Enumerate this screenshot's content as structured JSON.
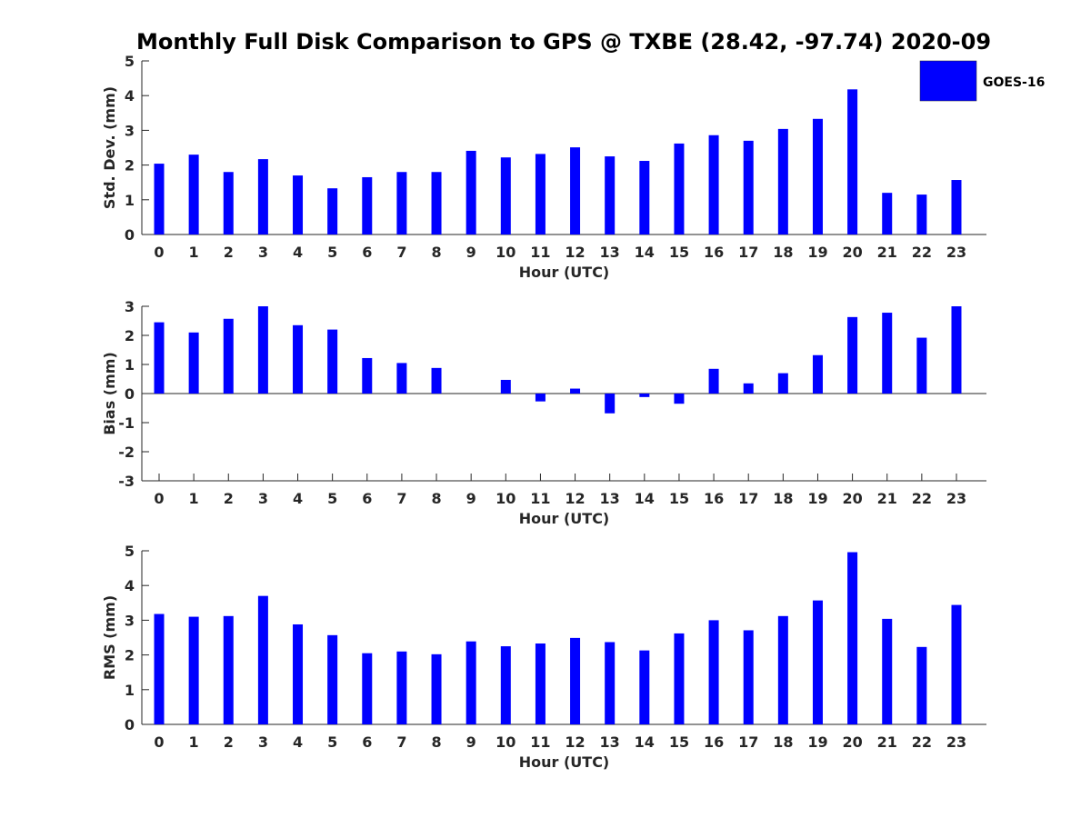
{
  "title": "Monthly Full Disk Comparison to GPS @ TXBE (28.42, -97.74) 2020-09",
  "legend": {
    "label": "GOES-16",
    "color": "#0000ff",
    "position": "top-right"
  },
  "colors": {
    "bar": "#0000ff",
    "axis": "#262626",
    "text": "#262626"
  },
  "chart_data": [
    {
      "type": "bar",
      "title": "Monthly Full Disk Comparison to GPS @ TXBE (28.42, -97.74) 2020-09",
      "xlabel": "Hour (UTC)",
      "ylabel": "Std. Dev. (mm)",
      "categories": [
        "0",
        "1",
        "2",
        "3",
        "4",
        "5",
        "6",
        "7",
        "8",
        "9",
        "10",
        "11",
        "12",
        "13",
        "14",
        "15",
        "16",
        "17",
        "18",
        "19",
        "20",
        "21",
        "22",
        "23"
      ],
      "series": [
        {
          "name": "GOES-16",
          "values": [
            2.04,
            2.3,
            1.8,
            2.17,
            1.7,
            1.33,
            1.65,
            1.8,
            1.8,
            2.41,
            2.22,
            2.32,
            2.51,
            2.25,
            2.12,
            2.62,
            2.86,
            2.7,
            3.04,
            3.33,
            4.18,
            1.2,
            1.15,
            1.57
          ]
        }
      ],
      "ylim": [
        0,
        5
      ],
      "yticks": [
        "0",
        "1",
        "2",
        "3",
        "4",
        "5"
      ],
      "grid": false
    },
    {
      "type": "bar",
      "xlabel": "Hour (UTC)",
      "ylabel": "Bias (mm)",
      "categories": [
        "0",
        "1",
        "2",
        "3",
        "4",
        "5",
        "6",
        "7",
        "8",
        "9",
        "10",
        "11",
        "12",
        "13",
        "14",
        "15",
        "16",
        "17",
        "18",
        "19",
        "20",
        "21",
        "22",
        "23"
      ],
      "series": [
        {
          "name": "GOES-16",
          "values": [
            2.45,
            2.1,
            2.57,
            3.0,
            2.35,
            2.2,
            1.22,
            1.05,
            0.88,
            0.0,
            0.47,
            -0.27,
            0.17,
            -0.68,
            -0.12,
            -0.35,
            0.85,
            0.35,
            0.7,
            1.32,
            2.63,
            2.78,
            1.92,
            3.0
          ]
        }
      ],
      "ylim": [
        -3,
        3
      ],
      "yticks": [
        "-3",
        "-2",
        "-1",
        "0",
        "1",
        "2",
        "3"
      ],
      "grid": false
    },
    {
      "type": "bar",
      "xlabel": "Hour (UTC)",
      "ylabel": "RMS (mm)",
      "categories": [
        "0",
        "1",
        "2",
        "3",
        "4",
        "5",
        "6",
        "7",
        "8",
        "9",
        "10",
        "11",
        "12",
        "13",
        "14",
        "15",
        "16",
        "17",
        "18",
        "19",
        "20",
        "21",
        "22",
        "23"
      ],
      "series": [
        {
          "name": "GOES-16",
          "values": [
            3.18,
            3.1,
            3.12,
            3.7,
            2.88,
            2.57,
            2.05,
            2.1,
            2.02,
            2.39,
            2.25,
            2.33,
            2.49,
            2.37,
            2.13,
            2.62,
            3.0,
            2.71,
            3.12,
            3.57,
            4.96,
            3.04,
            2.23,
            3.44
          ]
        }
      ],
      "ylim": [
        0,
        5
      ],
      "yticks": [
        "0",
        "1",
        "2",
        "3",
        "4",
        "5"
      ],
      "grid": false
    }
  ]
}
